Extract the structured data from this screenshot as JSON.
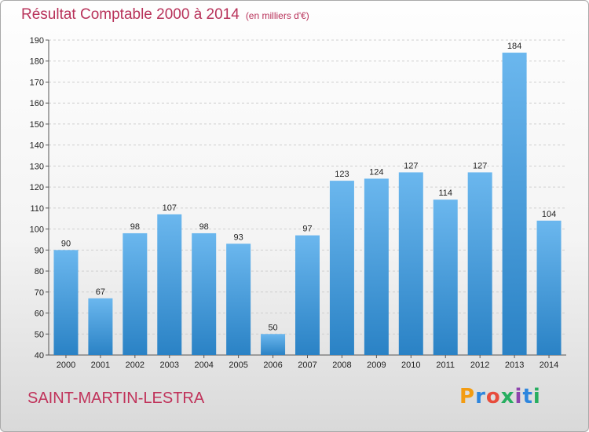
{
  "header": {
    "title": "Résultat Comptable 2000 à 2014",
    "subtitle": "(en milliers d'€)"
  },
  "footer": {
    "commune": "SAINT-MARTIN-LESTRA",
    "brand_letters": [
      "P",
      "r",
      "o",
      "x",
      "i",
      "t",
      "i"
    ],
    "brand_colors": [
      "#f39c12",
      "#2e86de",
      "#e74c3c",
      "#27ae60",
      "#8e44ad",
      "#2e86de",
      "#27ae60"
    ]
  },
  "colors": {
    "bar_light": "#6bb7ee",
    "bar_dark": "#2a82c5",
    "title": "#b8325a"
  },
  "chart_data": {
    "type": "bar",
    "title": "Résultat Comptable 2000 à 2014",
    "categories": [
      "2000",
      "2001",
      "2002",
      "2003",
      "2004",
      "2005",
      "2006",
      "2007",
      "2008",
      "2009",
      "2010",
      "2011",
      "2012",
      "2013",
      "2014"
    ],
    "values": [
      90,
      67,
      98,
      107,
      98,
      93,
      50,
      97,
      123,
      124,
      127,
      114,
      127,
      184,
      104
    ],
    "ylim": [
      40,
      190
    ],
    "yticks": [
      40,
      50,
      60,
      70,
      80,
      90,
      100,
      110,
      120,
      130,
      140,
      150,
      160,
      170,
      180,
      190
    ],
    "grid": true
  }
}
